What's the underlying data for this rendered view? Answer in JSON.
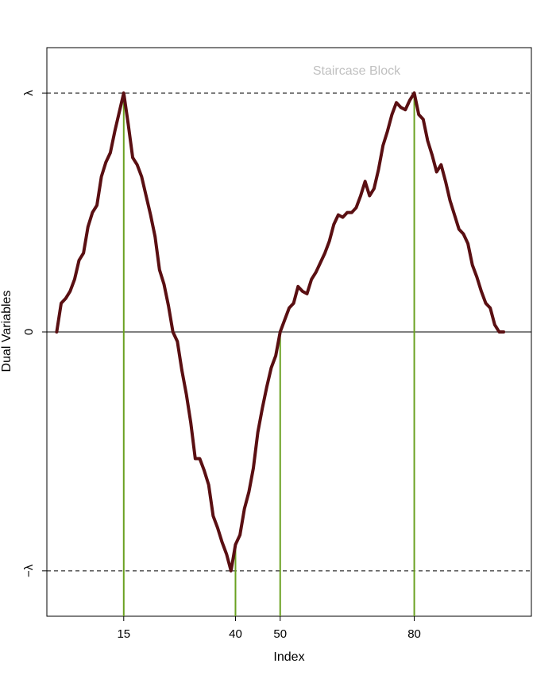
{
  "chart_data": {
    "type": "line",
    "title": "",
    "annotation": "Staircase Block",
    "xlabel": "Index",
    "ylabel": "Dual Variables",
    "xlim": [
      -2.2,
      106.2
    ],
    "ylim": [
      -1.19,
      1.19
    ],
    "x_ticks": [
      {
        "value": 15,
        "label": "15"
      },
      {
        "value": 40,
        "label": "40"
      },
      {
        "value": 50,
        "label": "50"
      },
      {
        "value": 80,
        "label": "80"
      }
    ],
    "y_ticks": [
      {
        "value": -1,
        "label": "−λ"
      },
      {
        "value": 0,
        "label": "0"
      },
      {
        "value": 1,
        "label": "λ"
      }
    ],
    "reference_lines": {
      "horizontal_dashed": [
        1,
        -1
      ],
      "horizontal_solid": [
        0
      ],
      "vertical_segments_at_x": [
        15,
        40,
        50,
        80
      ]
    },
    "grid": false,
    "series": [
      {
        "color": "#5a0f12",
        "x": [
          0,
          1,
          2,
          3,
          4,
          5,
          6,
          7,
          8,
          9,
          10,
          11,
          12,
          13,
          14,
          15,
          16,
          17,
          18,
          19,
          20,
          21,
          22,
          23,
          24,
          25,
          26,
          27,
          28,
          29,
          30,
          31,
          32,
          33,
          34,
          35,
          36,
          37,
          38,
          39,
          40,
          41,
          42,
          43,
          44,
          45,
          46,
          47,
          48,
          49,
          50,
          51,
          52,
          53,
          54,
          55,
          56,
          57,
          58,
          59,
          60,
          61,
          62,
          63,
          64,
          65,
          66,
          67,
          68,
          69,
          70,
          71,
          72,
          73,
          74,
          75,
          76,
          77,
          78,
          79,
          80,
          81,
          82,
          83,
          84,
          85,
          86,
          87,
          88,
          89,
          90,
          91,
          92,
          93,
          94,
          95,
          96,
          97,
          98,
          99,
          100
        ],
        "values": [
          0.0,
          0.12,
          0.14,
          0.17,
          0.22,
          0.3,
          0.33,
          0.44,
          0.5,
          0.53,
          0.65,
          0.71,
          0.75,
          0.84,
          0.92,
          1.0,
          0.87,
          0.73,
          0.7,
          0.65,
          0.57,
          0.49,
          0.4,
          0.26,
          0.2,
          0.11,
          0.0,
          -0.04,
          -0.16,
          -0.26,
          -0.38,
          -0.53,
          -0.53,
          -0.58,
          -0.64,
          -0.77,
          -0.82,
          -0.88,
          -0.93,
          -1.0,
          -0.89,
          -0.85,
          -0.74,
          -0.67,
          -0.57,
          -0.42,
          -0.32,
          -0.23,
          -0.15,
          -0.1,
          0.0,
          0.05,
          0.1,
          0.12,
          0.19,
          0.17,
          0.16,
          0.22,
          0.25,
          0.29,
          0.33,
          0.38,
          0.45,
          0.49,
          0.48,
          0.5,
          0.5,
          0.52,
          0.57,
          0.63,
          0.57,
          0.6,
          0.68,
          0.78,
          0.84,
          0.91,
          0.96,
          0.94,
          0.93,
          0.97,
          1.0,
          0.91,
          0.89,
          0.8,
          0.74,
          0.67,
          0.7,
          0.63,
          0.55,
          0.49,
          0.43,
          0.41,
          0.37,
          0.28,
          0.23,
          0.17,
          0.12,
          0.1,
          0.03,
          0.0,
          0.0
        ]
      }
    ]
  }
}
